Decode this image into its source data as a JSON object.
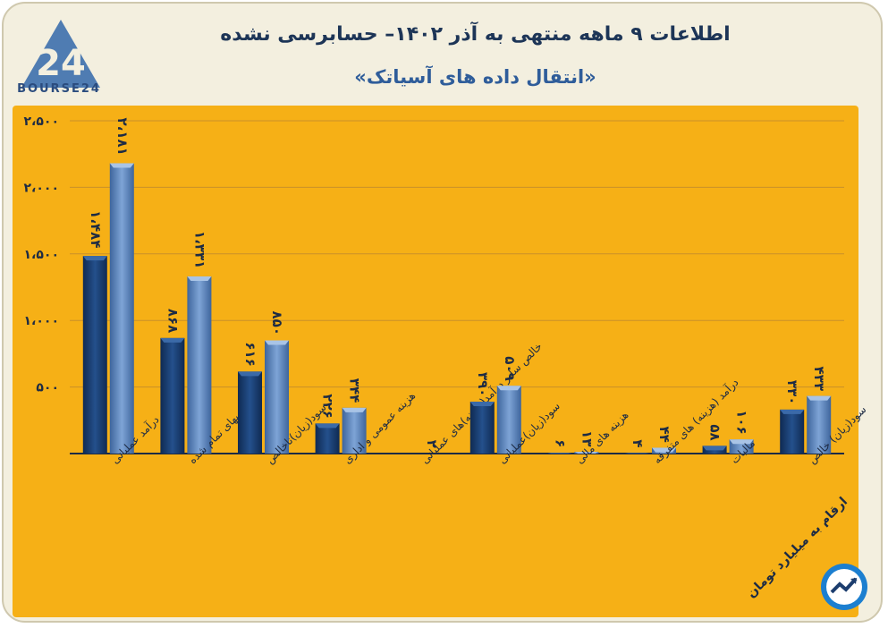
{
  "header": {
    "title": "اطلاعات ۹ ماهه منتهی به آذر ۱۴۰۲– حسابرسی نشده",
    "subtitle": "«انتقال داده های آسیاتک»",
    "logo_text": "BOURSE24"
  },
  "footer": {
    "unit_note": "ارقام به میلیارد تومان"
  },
  "colors": {
    "background": "#f6b016",
    "series_dark": "#1c3d6e",
    "series_light": "#5f86bb"
  },
  "chart_data": {
    "type": "bar",
    "categories": [
      "درآمد عملیاتی",
      "بهای تمام شده",
      "سود(زیان)ناخالص",
      "هزینه عمومی و اداری",
      "خالص سایر درآمد(هزینه)های عملیاتی",
      "سود(زیان)عملیاتی",
      "هزینه های مالی",
      "درآمد (هزینه) های متفرقه",
      "مالیات",
      "سود(زیان) خالص"
    ],
    "series": [
      {
        "values": [
          1484,
          868,
          616,
          226,
          0,
          390,
          6,
          4,
          58,
          330
        ],
        "labels": [
          "۱،۴۸۴",
          "۸۶۸",
          "۶۱۶",
          "۲۲۶",
          "",
          "۳۹۰",
          "۶",
          "۴",
          "۵۸",
          "۳۳۰"
        ]
      },
      {
        "values": [
          2181,
          1331,
          850,
          344,
          2,
          509,
          13,
          44,
          106,
          433
        ],
        "labels": [
          "۲،۱۸۱",
          "۱،۳۳۱",
          "۸۵۰",
          "۳۴۴",
          "۲",
          "۵۰۹",
          "۱۳",
          "۴۴",
          "۱۰۶",
          "۴۳۳"
        ]
      }
    ],
    "yticks": [
      500,
      1000,
      1500,
      2000,
      2500
    ],
    "ytick_labels": [
      "۵۰۰",
      "۱،۰۰۰",
      "۱،۵۰۰",
      "۲،۰۰۰",
      "۲،۵۰۰"
    ],
    "ylim": [
      0,
      2500
    ],
    "grid": true
  }
}
